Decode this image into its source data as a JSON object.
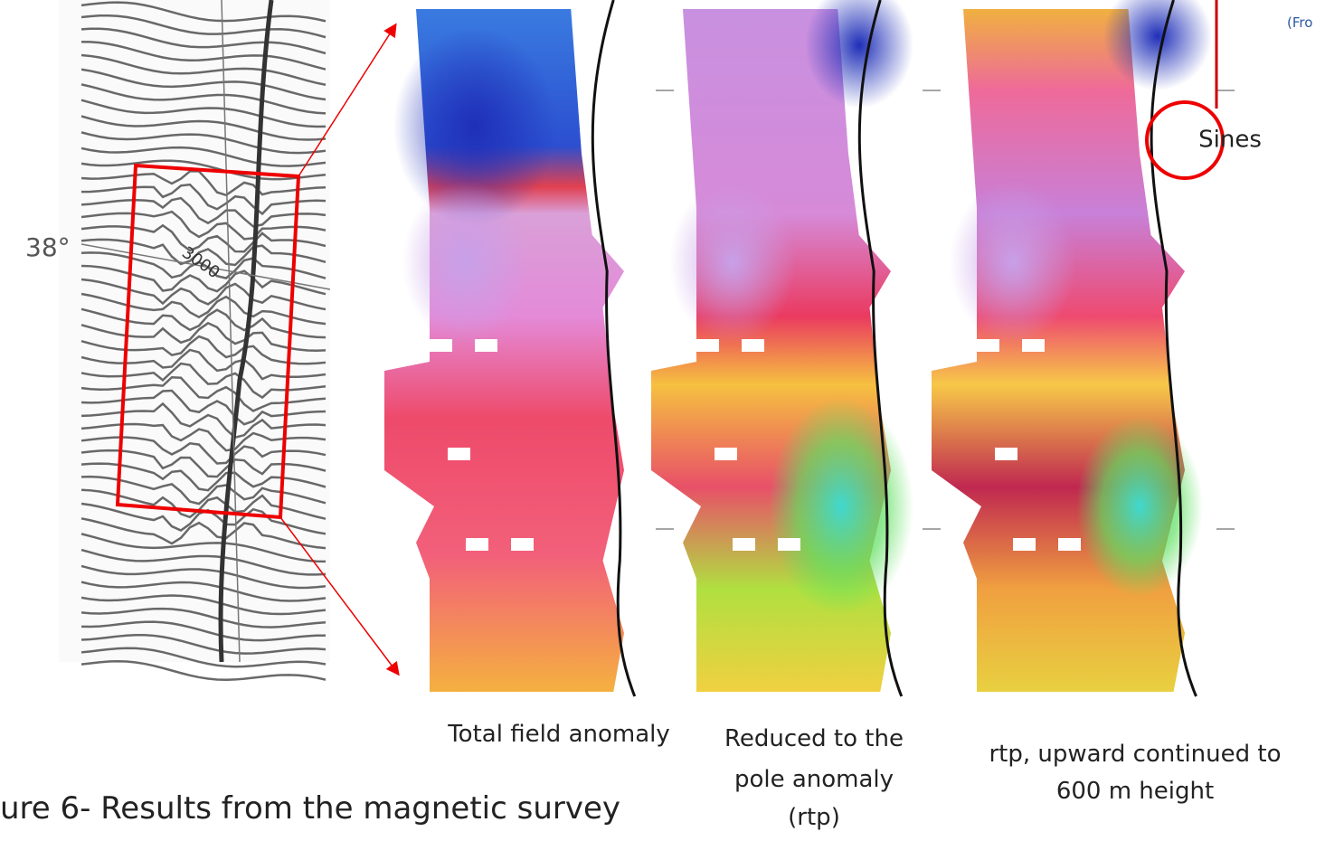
{
  "figure": {
    "caption": "ure 6- Results from the magnetic survey",
    "source_note": "(Fro",
    "contour_map": {
      "latitude_label": "38°",
      "contour_label": "3000"
    },
    "panels": [
      {
        "label_lines": [
          "Total field anomaly"
        ]
      },
      {
        "label_lines": [
          "Reduced to the",
          "pole anomaly",
          "(rtp)"
        ]
      },
      {
        "label_lines": [
          "rtp, upward continued to",
          "600 m height"
        ]
      }
    ],
    "place_label": "Sines"
  }
}
